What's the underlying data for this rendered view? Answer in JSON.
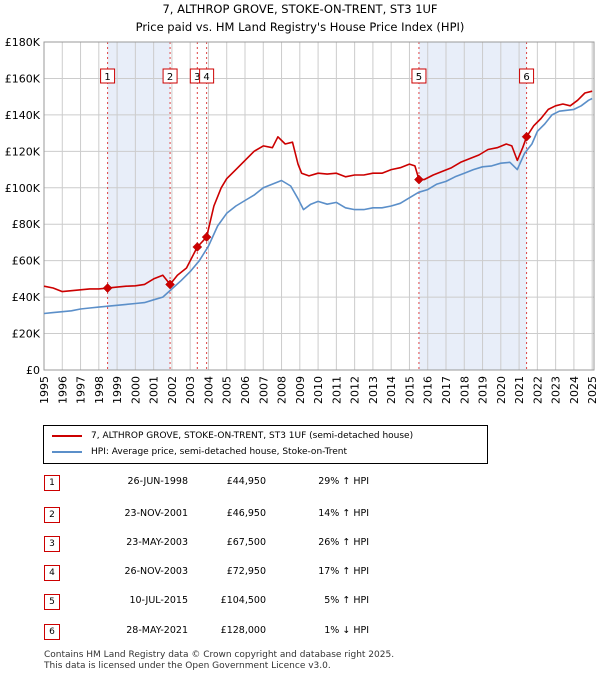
{
  "chart_data": {
    "type": "line",
    "title": "7, ALTHROP GROVE, STOKE-ON-TRENT, ST3 1UF",
    "subtitle": "Price paid vs. HM Land Registry's House Price Index (HPI)",
    "xlim": [
      1995,
      2025.1
    ],
    "ylim": [
      0,
      180000
    ],
    "y_ticks": [
      0,
      20000,
      40000,
      60000,
      80000,
      100000,
      120000,
      140000,
      160000,
      180000
    ],
    "y_tick_labels": [
      "£0",
      "£20K",
      "£40K",
      "£60K",
      "£80K",
      "£100K",
      "£120K",
      "£140K",
      "£160K",
      "£180K"
    ],
    "x_ticks": [
      1995,
      1996,
      1997,
      1998,
      1999,
      2000,
      2001,
      2002,
      2003,
      2004,
      2005,
      2006,
      2007,
      2008,
      2009,
      2010,
      2011,
      2012,
      2013,
      2014,
      2015,
      2016,
      2017,
      2018,
      2019,
      2020,
      2021,
      2022,
      2023,
      2024,
      2025
    ],
    "x_tick_labels": [
      "1995",
      "1996",
      "1997",
      "1998",
      "1999",
      "2000",
      "2001",
      "2002",
      "2003",
      "2004",
      "2005",
      "2006",
      "2007",
      "2008",
      "2009",
      "2010",
      "2011",
      "2012",
      "2013",
      "2014",
      "2015",
      "2016",
      "2017",
      "2018",
      "2019",
      "2020",
      "2021",
      "2022",
      "2023",
      "2024",
      "2025"
    ],
    "grid": true,
    "shaded_ranges": [
      [
        1998.48,
        2001.9
      ],
      [
        2015.52,
        2021.41
      ]
    ],
    "series": [
      {
        "name": "7, ALTHROP GROVE, STOKE-ON-TRENT, ST3 1UF (semi-detached house)",
        "color": "#cc0000",
        "x": [
          1995,
          1995.5,
          1996,
          1996.5,
          1997,
          1997.5,
          1998,
          1998.48,
          1999,
          1999.5,
          2000,
          2000.5,
          2001,
          2001.5,
          2001.9,
          2002.3,
          2002.8,
          2003.39,
          2003.9,
          2004.3,
          2004.7,
          2005,
          2005.5,
          2006,
          2006.5,
          2007,
          2007.5,
          2007.8,
          2008.2,
          2008.6,
          2008.9,
          2009.1,
          2009.5,
          2010,
          2010.5,
          2011,
          2011.5,
          2012,
          2012.5,
          2013,
          2013.5,
          2014,
          2014.5,
          2015,
          2015.3,
          2015.52,
          2015.8,
          2016.3,
          2016.8,
          2017.3,
          2017.8,
          2018.3,
          2018.8,
          2019.3,
          2019.8,
          2020.3,
          2020.6,
          2020.9,
          2021.2,
          2021.41,
          2021.8,
          2022.2,
          2022.6,
          2023,
          2023.4,
          2023.8,
          2024.2,
          2024.6,
          2025
        ],
        "y": [
          46000,
          45000,
          43000,
          43500,
          44000,
          44500,
          44500,
          44950,
          45500,
          46000,
          46200,
          47000,
          50000,
          52000,
          46950,
          52000,
          56000,
          67500,
          72950,
          90000,
          100000,
          105000,
          110000,
          115000,
          120000,
          123000,
          122000,
          128000,
          124000,
          125000,
          113000,
          108000,
          106500,
          108000,
          107500,
          108000,
          106000,
          107000,
          107000,
          108000,
          108000,
          110000,
          111000,
          113000,
          112000,
          104500,
          104500,
          107000,
          109000,
          111000,
          114000,
          116000,
          118000,
          121000,
          122000,
          124000,
          123000,
          115000,
          122000,
          128000,
          134000,
          138000,
          143000,
          145000,
          146000,
          145000,
          148000,
          152000,
          153000
        ]
      },
      {
        "name": "HPI: Average price, semi-detached house, Stoke-on-Trent",
        "color": "#5b8fc9",
        "x": [
          1995,
          1995.5,
          1996,
          1996.5,
          1997,
          1997.5,
          1998,
          1998.5,
          1999,
          1999.5,
          2000,
          2000.5,
          2001,
          2001.5,
          2002,
          2002.5,
          2003,
          2003.5,
          2004,
          2004.5,
          2005,
          2005.5,
          2006,
          2006.5,
          2007,
          2007.5,
          2008,
          2008.5,
          2008.9,
          2009.2,
          2009.6,
          2010,
          2010.5,
          2011,
          2011.5,
          2012,
          2012.5,
          2013,
          2013.5,
          2014,
          2014.5,
          2015,
          2015.5,
          2016,
          2016.5,
          2017,
          2017.5,
          2018,
          2018.5,
          2019,
          2019.5,
          2020,
          2020.5,
          2020.9,
          2021.3,
          2021.7,
          2022,
          2022.4,
          2022.8,
          2023.2,
          2023.6,
          2024,
          2024.4,
          2024.8,
          2025
        ],
        "y": [
          31000,
          31500,
          32000,
          32500,
          33500,
          34000,
          34500,
          35000,
          35500,
          36000,
          36500,
          37000,
          38500,
          40000,
          44500,
          49000,
          54000,
          60000,
          68000,
          79000,
          86000,
          90000,
          93000,
          96000,
          100000,
          102000,
          104000,
          101000,
          94000,
          88000,
          91000,
          92500,
          91000,
          92000,
          89000,
          88000,
          88000,
          89000,
          89000,
          90000,
          91500,
          94500,
          97500,
          99000,
          102000,
          103500,
          106000,
          108000,
          110000,
          111500,
          112000,
          113500,
          114000,
          110000,
          119000,
          124000,
          131000,
          135000,
          140000,
          142000,
          142500,
          143000,
          145000,
          148000,
          149000
        ]
      }
    ],
    "sales": [
      {
        "id": "1",
        "date": "26-JUN-1998",
        "x": 1998.48,
        "price": 44950,
        "price_label": "£44,950",
        "hpi": "29% ↑ HPI"
      },
      {
        "id": "2",
        "date": "23-NOV-2001",
        "x": 2001.9,
        "price": 46950,
        "price_label": "£46,950",
        "hpi": "14% ↑ HPI"
      },
      {
        "id": "3",
        "date": "23-MAY-2003",
        "x": 2003.39,
        "price": 67500,
        "price_label": "£67,500",
        "hpi": "26% ↑ HPI"
      },
      {
        "id": "4",
        "date": "26-NOV-2003",
        "x": 2003.9,
        "price": 72950,
        "price_label": "£72,950",
        "hpi": "17% ↑ HPI"
      },
      {
        "id": "5",
        "date": "10-JUL-2015",
        "x": 2015.52,
        "price": 104500,
        "price_label": "£104,500",
        "hpi": "5% ↑ HPI"
      },
      {
        "id": "6",
        "date": "28-MAY-2021",
        "x": 2021.41,
        "price": 128000,
        "price_label": "£128,000",
        "hpi": "1% ↓ HPI"
      }
    ]
  },
  "legend": {
    "property_label": "7, ALTHROP GROVE, STOKE-ON-TRENT, ST3 1UF (semi-detached house)",
    "hpi_label": "HPI: Average price, semi-detached house, Stoke-on-Trent"
  },
  "footer": {
    "line1": "Contains HM Land Registry data © Crown copyright and database right 2025.",
    "line2": "This data is licensed under the Open Government Licence v3.0."
  },
  "colors": {
    "property": "#cc0000",
    "hpi": "#5b8fc9",
    "shade": "#e8eef9",
    "grid": "#cccccc"
  }
}
